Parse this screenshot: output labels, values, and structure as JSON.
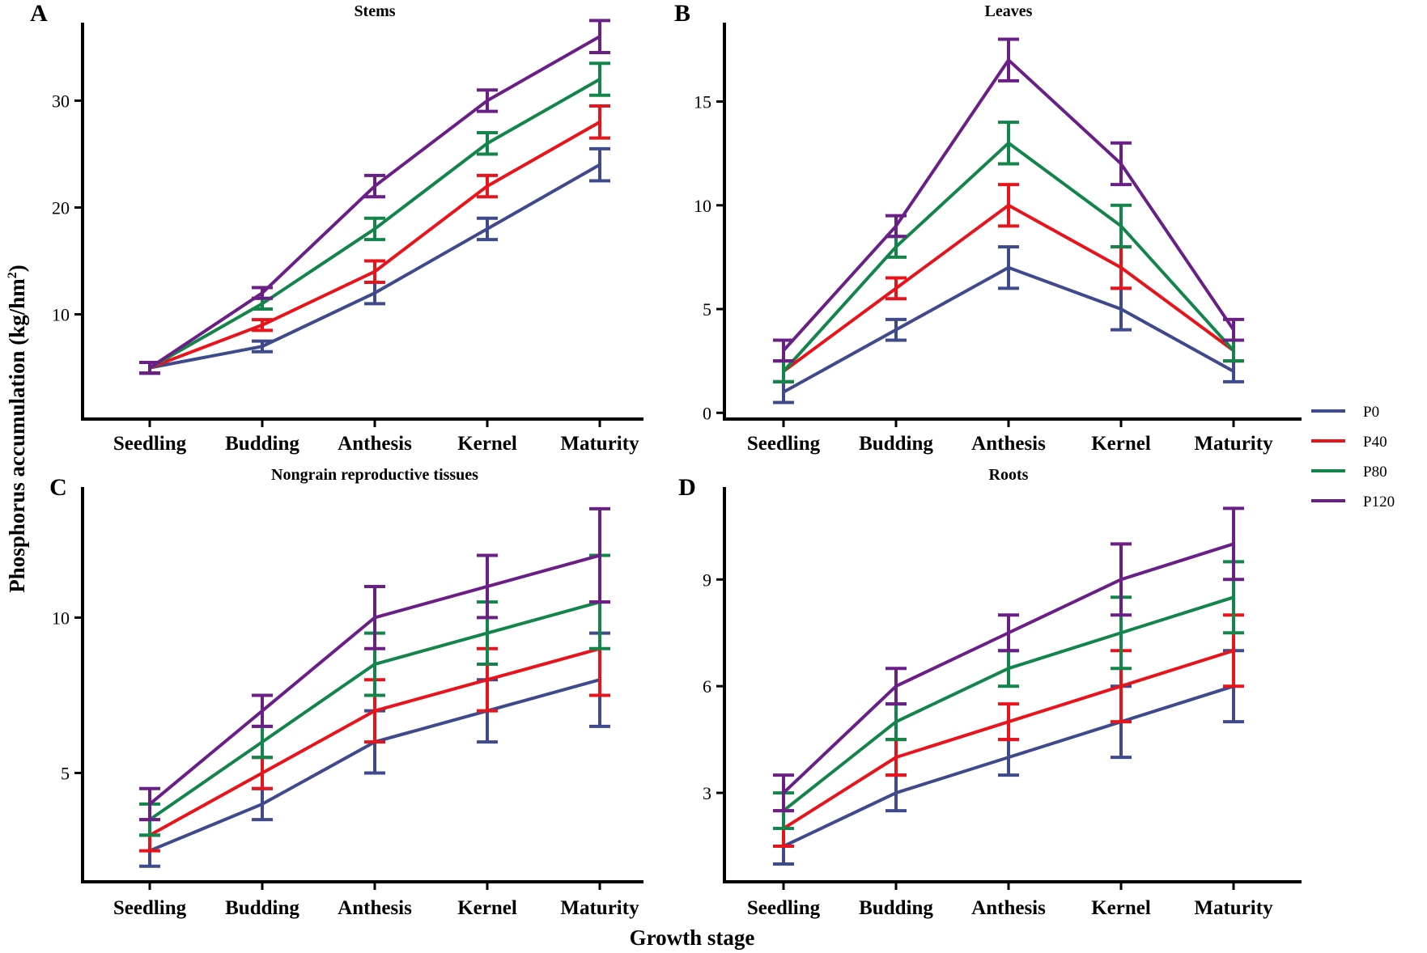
{
  "colors": {
    "P0": "#3f4a8c",
    "P40": "#e8141b",
    "P80": "#14854a",
    "P120": "#6a1f86",
    "axis": "#000000"
  },
  "labels": {
    "ylabel_main": "Phosphorus accumulation (kg/hm",
    "ylabel_sup": "2",
    "ylabel_close": ")",
    "xlabel": "Growth stage"
  },
  "legend": [
    "P0",
    "P40",
    "P80",
    "P120"
  ],
  "chart_data": [
    {
      "type": "line",
      "letter": "A",
      "title": "Stems",
      "categories": [
        "Seedling",
        "Budding",
        "Anthesis",
        "Kernel",
        "Maturity"
      ],
      "ylim": [
        0.2,
        37.3
      ],
      "yticks": [
        10,
        20,
        30
      ],
      "series": [
        {
          "name": "P0",
          "values": [
            5,
            7,
            12,
            18,
            24
          ],
          "errors": [
            0.5,
            0.5,
            1,
            1,
            1.5
          ]
        },
        {
          "name": "P40",
          "values": [
            5,
            9,
            14,
            22,
            28
          ],
          "errors": [
            0.5,
            0.5,
            1,
            1,
            1.5
          ]
        },
        {
          "name": "P80",
          "values": [
            5,
            11,
            18,
            26,
            32
          ],
          "errors": [
            0.5,
            0.5,
            1,
            1,
            1.5
          ]
        },
        {
          "name": "P120",
          "values": [
            5,
            12,
            22,
            30,
            36
          ],
          "errors": [
            0.5,
            0.5,
            1,
            1,
            1.5
          ]
        }
      ]
    },
    {
      "type": "line",
      "letter": "B",
      "title": "Leaves",
      "categories": [
        "Seedling",
        "Budding",
        "Anthesis",
        "Kernel",
        "Maturity"
      ],
      "ylim": [
        -0.3,
        18.8
      ],
      "yticks": [
        0,
        5,
        10,
        15
      ],
      "series": [
        {
          "name": "P0",
          "values": [
            1,
            4,
            7,
            5,
            2
          ],
          "errors": [
            0.5,
            0.5,
            1,
            1,
            0.5
          ]
        },
        {
          "name": "P40",
          "values": [
            2,
            6,
            10,
            7,
            3
          ],
          "errors": [
            0.5,
            0.5,
            1,
            1,
            0.5
          ]
        },
        {
          "name": "P80",
          "values": [
            2,
            8,
            13,
            9,
            3
          ],
          "errors": [
            0.5,
            0.5,
            1,
            1,
            0.5
          ]
        },
        {
          "name": "P120",
          "values": [
            3,
            9,
            17,
            12,
            4
          ],
          "errors": [
            0.5,
            0.5,
            1,
            1,
            0.5
          ]
        }
      ]
    },
    {
      "type": "line",
      "letter": "C",
      "title": "Nongrain reproductive tissues",
      "categories": [
        "Seedling",
        "Budding",
        "Anthesis",
        "Kernel",
        "Maturity"
      ],
      "ylim": [
        1.5,
        14.2
      ],
      "yticks": [
        5,
        10
      ],
      "series": [
        {
          "name": "P0",
          "values": [
            2.5,
            4,
            6,
            7,
            8
          ],
          "errors": [
            0.5,
            0.5,
            1,
            1,
            1.5
          ]
        },
        {
          "name": "P40",
          "values": [
            3,
            5,
            7,
            8,
            9
          ],
          "errors": [
            0.5,
            0.5,
            1,
            1,
            1.5
          ]
        },
        {
          "name": "P80",
          "values": [
            3.5,
            6,
            8.5,
            9.5,
            10.5
          ],
          "errors": [
            0.5,
            0.5,
            1,
            1,
            1.5
          ]
        },
        {
          "name": "P120",
          "values": [
            4,
            7,
            10,
            11,
            12
          ],
          "errors": [
            0.5,
            0.5,
            1,
            1,
            1.5
          ]
        }
      ]
    },
    {
      "type": "line",
      "letter": "D",
      "title": "Roots",
      "categories": [
        "Seedling",
        "Budding",
        "Anthesis",
        "Kernel",
        "Maturity"
      ],
      "ylim": [
        0.5,
        11.6
      ],
      "yticks": [
        3,
        6,
        9
      ],
      "series": [
        {
          "name": "P0",
          "values": [
            1.5,
            3,
            4,
            5,
            6
          ],
          "errors": [
            0.5,
            0.5,
            0.5,
            1,
            1
          ]
        },
        {
          "name": "P40",
          "values": [
            2,
            4,
            5,
            6,
            7
          ],
          "errors": [
            0.5,
            0.5,
            0.5,
            1,
            1
          ]
        },
        {
          "name": "P80",
          "values": [
            2.5,
            5,
            6.5,
            7.5,
            8.5
          ],
          "errors": [
            0.5,
            0.5,
            0.5,
            1,
            1
          ]
        },
        {
          "name": "P120",
          "values": [
            3,
            6,
            7.5,
            9,
            10
          ],
          "errors": [
            0.5,
            0.5,
            0.5,
            1,
            1
          ]
        }
      ]
    }
  ]
}
